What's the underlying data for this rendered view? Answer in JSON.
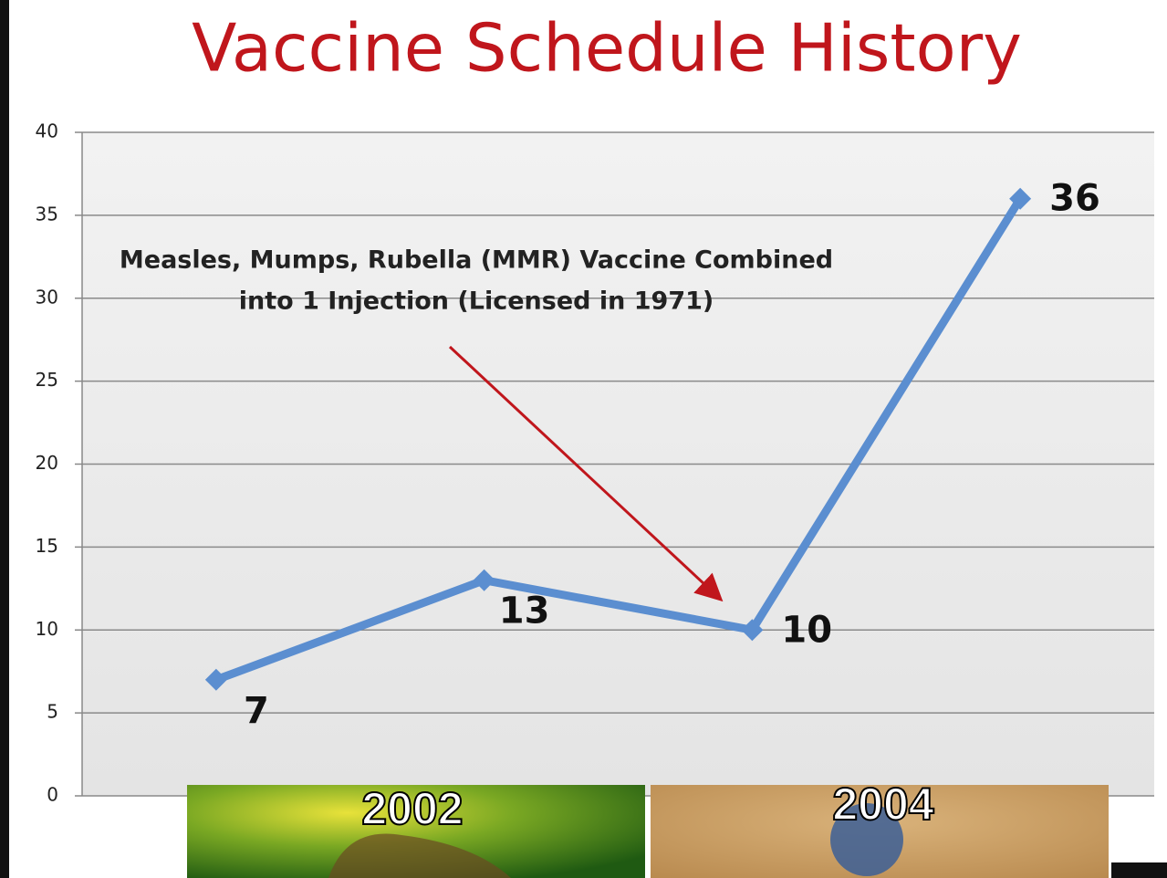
{
  "chart_data": {
    "type": "line",
    "title": "Vaccine Schedule History",
    "categories": [
      null,
      null,
      null,
      null
    ],
    "series": [
      {
        "color": "#5b8ed0",
        "values": [
          7,
          13,
          10,
          36
        ]
      }
    ],
    "ylim": [
      0,
      40
    ],
    "yticks": [
      0,
      5,
      10,
      15,
      20,
      25,
      30,
      35,
      40
    ],
    "grid": true,
    "annotation": [
      "Measles, Mumps, Rubella (MMR) Vaccine Combined",
      "into 1 Injection (Licensed in 1971)"
    ],
    "picture_labels": [
      "2002",
      "2004"
    ]
  }
}
